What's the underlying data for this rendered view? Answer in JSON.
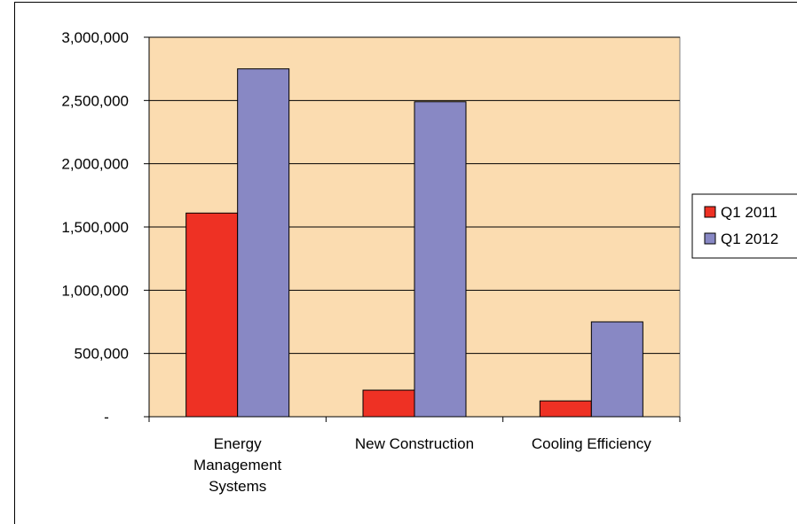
{
  "chart_data": {
    "type": "bar",
    "categories": [
      [
        "Energy",
        "Management",
        "Systems"
      ],
      [
        "New Construction"
      ],
      [
        "Cooling Efficiency"
      ]
    ],
    "series": [
      {
        "name": "Q1 2011",
        "color": "#ee3124",
        "values": [
          1610000,
          210000,
          125000
        ]
      },
      {
        "name": "Q1 2012",
        "color": "#8888c4",
        "values": [
          2750000,
          2490000,
          750000
        ]
      }
    ],
    "ylim": [
      0,
      3000000
    ],
    "yticks": [
      0,
      500000,
      1000000,
      1500000,
      2000000,
      2500000,
      3000000
    ],
    "ytick_labels": [
      "-",
      "500,000",
      "1,000,000",
      "1,500,000",
      "2,000,000",
      "2,500,000",
      "3,000,000"
    ],
    "plot_background": "#fbdcb0",
    "grid": "horizontal",
    "legend_position": "right"
  }
}
